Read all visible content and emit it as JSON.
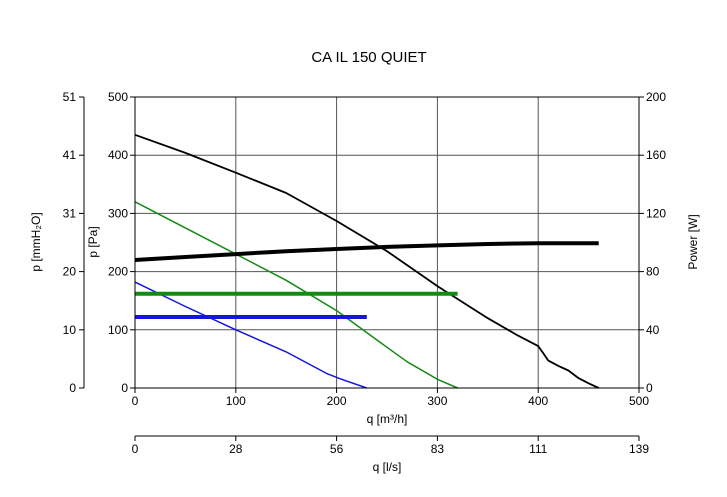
{
  "chart_data": {
    "type": "line",
    "title": "CA IL 150 QUIET",
    "xlabel": "q [m³/h]",
    "xlabel2": "q [l/s]",
    "ylabel": "p [Pa]",
    "ylabel_mm": "p [mmH₂O]",
    "ylabel_right": "Power [W]",
    "xlim": [
      0,
      500
    ],
    "ylim": [
      0,
      500
    ],
    "ylim_right": [
      0,
      200
    ],
    "x_ticks": [
      "0",
      "100",
      "200",
      "300",
      "400",
      "500"
    ],
    "y_ticks": [
      "0",
      "100",
      "200",
      "300",
      "400",
      "500"
    ],
    "y_ticks_mm": [
      "0",
      "10",
      "20",
      "31",
      "41",
      "51"
    ],
    "y_ticks_right": [
      "0",
      "40",
      "80",
      "120",
      "160",
      "200"
    ],
    "x2_ticks": [
      "0",
      "28",
      "56",
      "83",
      "111",
      "139"
    ],
    "grid": true,
    "series": [
      {
        "color": "#000000",
        "width": 1.8,
        "axis": "left",
        "points": [
          [
            0,
            435
          ],
          [
            50,
            404
          ],
          [
            100,
            370
          ],
          [
            150,
            335
          ],
          [
            200,
            287
          ],
          [
            250,
            235
          ],
          [
            300,
            175
          ],
          [
            350,
            120
          ],
          [
            380,
            90
          ],
          [
            400,
            72
          ],
          [
            405,
            60
          ],
          [
            410,
            47
          ],
          [
            420,
            38
          ],
          [
            430,
            30
          ],
          [
            440,
            17
          ],
          [
            450,
            8
          ],
          [
            460,
            0
          ]
        ]
      },
      {
        "color": "#138a13",
        "width": 1.5,
        "axis": "left",
        "points": [
          [
            0,
            320
          ],
          [
            50,
            275
          ],
          [
            100,
            230
          ],
          [
            150,
            185
          ],
          [
            200,
            133
          ],
          [
            250,
            70
          ],
          [
            270,
            45
          ],
          [
            290,
            25
          ],
          [
            300,
            15
          ],
          [
            320,
            0
          ]
        ]
      },
      {
        "color": "#1515e0",
        "width": 1.5,
        "axis": "left",
        "points": [
          [
            0,
            182
          ],
          [
            50,
            140
          ],
          [
            100,
            100
          ],
          [
            150,
            62
          ],
          [
            190,
            25
          ],
          [
            205,
            15
          ],
          [
            230,
            0
          ]
        ]
      },
      {
        "color": "#000000",
        "width": 4,
        "axis": "right",
        "points": [
          [
            0,
            88
          ],
          [
            50,
            90
          ],
          [
            100,
            92
          ],
          [
            150,
            94
          ],
          [
            200,
            95.5
          ],
          [
            250,
            97
          ],
          [
            300,
            98
          ],
          [
            350,
            99
          ],
          [
            400,
            99.5
          ],
          [
            460,
            99.5
          ]
        ]
      },
      {
        "color": "#138a13",
        "width": 4,
        "axis": "left",
        "points": [
          [
            0,
            162
          ],
          [
            320,
            162
          ]
        ]
      },
      {
        "color": "#1515e0",
        "width": 4,
        "axis": "left",
        "points": [
          [
            0,
            122
          ],
          [
            230,
            122
          ]
        ]
      }
    ]
  }
}
